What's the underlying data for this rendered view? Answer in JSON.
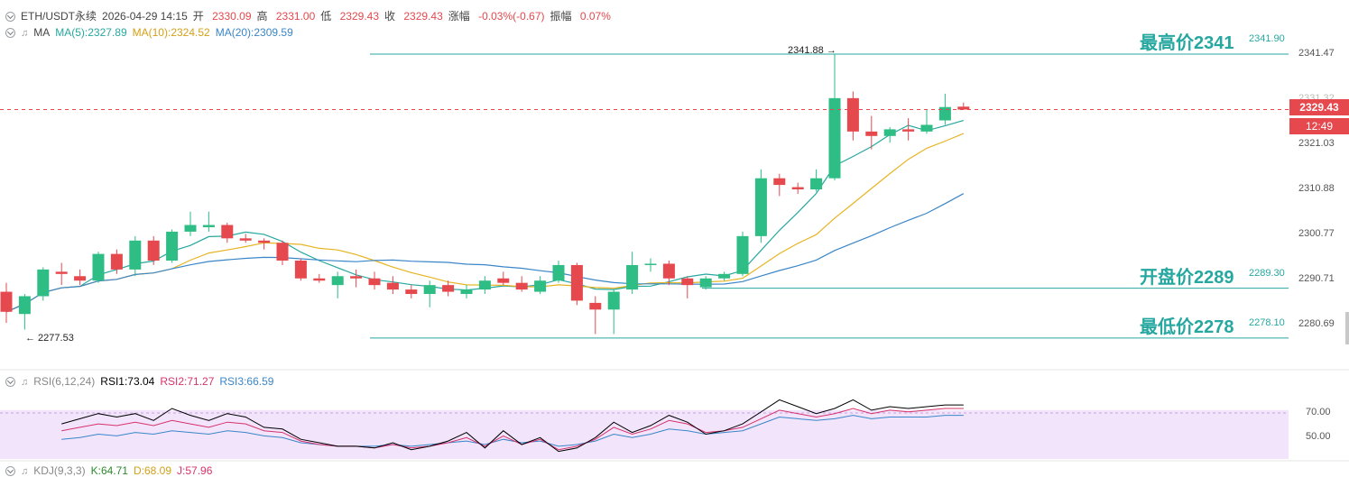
{
  "header": {
    "symbol": "ETH/USDT永续",
    "datetime": "2026-04-29 14:15",
    "open_label": "开",
    "open": "2330.09",
    "high_label": "高",
    "high": "2331.00",
    "low_label": "低",
    "low": "2329.43",
    "close_label": "收",
    "close": "2329.43",
    "change_label": "涨幅",
    "change": "-0.03%(-0.67)",
    "amp_label": "振幅",
    "amp": "0.07%"
  },
  "ma": {
    "label": "MA",
    "ma5": "MA(5):2327.89",
    "ma10": "MA(10):2324.52",
    "ma20": "MA(20):2309.59"
  },
  "rsi": {
    "label": "RSI(6,12,24)",
    "rsi1": "RSI1:73.04",
    "rsi2": "RSI2:71.27",
    "rsi3": "RSI3:66.59"
  },
  "kdj": {
    "label": "KDJ(9,3,3)",
    "k": "K:64.71",
    "d": "D:68.09",
    "j": "J:57.96"
  },
  "annotations": {
    "highest": "最高价2341",
    "highest_val": "2341.90",
    "open": "开盘价2289",
    "open_val": "2289.30",
    "lowest": "最低价2278",
    "lowest_val": "2278.10",
    "peak_label": "2341.88 →",
    "trough_label": "← 2277.53"
  },
  "price_tag": {
    "price": "2329.43",
    "countdown": "12:49"
  },
  "axis_labels": [
    "2341.47",
    "2331.32",
    "2321.03",
    "2310.88",
    "2300.77",
    "2290.71",
    "2280.69"
  ],
  "rsi_axis_labels": [
    "70.00",
    "50.00"
  ],
  "colors": {
    "up": "#2ebd85",
    "down": "#e5484d",
    "ma5": "#26a7a0",
    "ma10": "#e6b422",
    "ma20": "#3a86c8",
    "ref_line": "#26a7a0",
    "rsi1": "#000000",
    "rsi2": "#d6336c",
    "rsi3": "#3a86c8",
    "rsi_band": "#f1e4fb"
  },
  "chart_data": {
    "type": "candlestick",
    "price_range": [
      2272,
      2350
    ],
    "candles": [
      {
        "o": 2288.5,
        "h": 2290.5,
        "l": 2281.5,
        "c": 2284.0
      },
      {
        "o": 2283.5,
        "h": 2288.0,
        "l": 2280.0,
        "c": 2287.5
      },
      {
        "o": 2287.5,
        "h": 2294.0,
        "l": 2286.5,
        "c": 2293.5
      },
      {
        "o": 2293.0,
        "h": 2295.0,
        "l": 2290.0,
        "c": 2292.5
      },
      {
        "o": 2292.0,
        "h": 2293.5,
        "l": 2290.0,
        "c": 2291.0
      },
      {
        "o": 2291.0,
        "h": 2297.5,
        "l": 2290.5,
        "c": 2297.0
      },
      {
        "o": 2297.0,
        "h": 2298.0,
        "l": 2292.5,
        "c": 2293.5
      },
      {
        "o": 2293.5,
        "h": 2301.0,
        "l": 2292.0,
        "c": 2300.0
      },
      {
        "o": 2300.0,
        "h": 2301.0,
        "l": 2294.5,
        "c": 2295.5
      },
      {
        "o": 2295.5,
        "h": 2302.5,
        "l": 2295.0,
        "c": 2302.0
      },
      {
        "o": 2302.0,
        "h": 2306.5,
        "l": 2301.0,
        "c": 2303.5
      },
      {
        "o": 2303.0,
        "h": 2306.5,
        "l": 2302.0,
        "c": 2303.5
      },
      {
        "o": 2303.5,
        "h": 2304.0,
        "l": 2299.5,
        "c": 2300.5
      },
      {
        "o": 2300.5,
        "h": 2301.5,
        "l": 2299.5,
        "c": 2300.0
      },
      {
        "o": 2300.0,
        "h": 2300.5,
        "l": 2298.0,
        "c": 2299.5
      },
      {
        "o": 2299.5,
        "h": 2300.0,
        "l": 2294.5,
        "c": 2295.5
      },
      {
        "o": 2295.5,
        "h": 2296.0,
        "l": 2291.0,
        "c": 2291.5
      },
      {
        "o": 2291.5,
        "h": 2292.5,
        "l": 2290.5,
        "c": 2291.0
      },
      {
        "o": 2290.0,
        "h": 2293.0,
        "l": 2287.0,
        "c": 2292.0
      },
      {
        "o": 2292.0,
        "h": 2293.5,
        "l": 2289.5,
        "c": 2291.5
      },
      {
        "o": 2291.5,
        "h": 2293.0,
        "l": 2289.0,
        "c": 2290.0
      },
      {
        "o": 2290.5,
        "h": 2292.0,
        "l": 2288.0,
        "c": 2289.0
      },
      {
        "o": 2289.0,
        "h": 2290.0,
        "l": 2287.0,
        "c": 2288.0
      },
      {
        "o": 2288.0,
        "h": 2291.0,
        "l": 2285.0,
        "c": 2290.0
      },
      {
        "o": 2290.0,
        "h": 2291.0,
        "l": 2287.5,
        "c": 2288.5
      },
      {
        "o": 2288.0,
        "h": 2290.0,
        "l": 2287.0,
        "c": 2289.0
      },
      {
        "o": 2289.0,
        "h": 2292.0,
        "l": 2288.0,
        "c": 2291.0
      },
      {
        "o": 2291.5,
        "h": 2293.0,
        "l": 2290.0,
        "c": 2290.5
      },
      {
        "o": 2290.5,
        "h": 2292.0,
        "l": 2288.5,
        "c": 2289.0
      },
      {
        "o": 2288.5,
        "h": 2292.0,
        "l": 2288.0,
        "c": 2291.0
      },
      {
        "o": 2291.0,
        "h": 2295.5,
        "l": 2290.5,
        "c": 2294.5
      },
      {
        "o": 2294.5,
        "h": 2295.0,
        "l": 2285.5,
        "c": 2286.5
      },
      {
        "o": 2286.0,
        "h": 2287.5,
        "l": 2279.0,
        "c": 2284.5
      },
      {
        "o": 2284.5,
        "h": 2289.0,
        "l": 2279.0,
        "c": 2288.5
      },
      {
        "o": 2289.0,
        "h": 2297.5,
        "l": 2288.0,
        "c": 2294.5
      },
      {
        "o": 2294.5,
        "h": 2296.0,
        "l": 2293.0,
        "c": 2294.8
      },
      {
        "o": 2294.8,
        "h": 2295.5,
        "l": 2290.0,
        "c": 2291.5
      },
      {
        "o": 2291.5,
        "h": 2292.0,
        "l": 2287.0,
        "c": 2290.0
      },
      {
        "o": 2289.5,
        "h": 2292.0,
        "l": 2289.0,
        "c": 2291.5
      },
      {
        "o": 2291.5,
        "h": 2293.0,
        "l": 2291.0,
        "c": 2292.5
      },
      {
        "o": 2292.5,
        "h": 2302.0,
        "l": 2292.0,
        "c": 2301.0
      },
      {
        "o": 2301.0,
        "h": 2316.0,
        "l": 2299.5,
        "c": 2314.0
      },
      {
        "o": 2314.0,
        "h": 2315.0,
        "l": 2310.0,
        "c": 2312.5
      },
      {
        "o": 2312.0,
        "h": 2313.0,
        "l": 2310.5,
        "c": 2311.5
      },
      {
        "o": 2311.5,
        "h": 2316.0,
        "l": 2311.0,
        "c": 2314.0
      },
      {
        "o": 2314.0,
        "h": 2341.88,
        "l": 2313.5,
        "c": 2332.0
      },
      {
        "o": 2332.0,
        "h": 2333.5,
        "l": 2322.5,
        "c": 2324.5
      },
      {
        "o": 2324.5,
        "h": 2328.0,
        "l": 2320.5,
        "c": 2323.5
      },
      {
        "o": 2323.5,
        "h": 2325.5,
        "l": 2322.0,
        "c": 2325.0
      },
      {
        "o": 2325.0,
        "h": 2327.5,
        "l": 2322.5,
        "c": 2324.5
      },
      {
        "o": 2324.5,
        "h": 2329.5,
        "l": 2324.0,
        "c": 2326.0
      },
      {
        "o": 2327.0,
        "h": 2333.0,
        "l": 2326.0,
        "c": 2330.0
      },
      {
        "o": 2330.09,
        "h": 2331.0,
        "l": 2329.43,
        "c": 2329.43
      }
    ],
    "rsi_range": [
      40,
      82
    ],
    "rsi1": [
      62,
      65,
      68,
      66,
      68,
      64,
      71,
      67,
      64,
      68,
      66,
      60,
      59,
      53,
      51,
      49,
      49,
      48,
      51,
      47,
      49,
      52,
      57,
      48,
      58,
      50,
      54,
      46,
      48,
      54,
      63,
      57,
      61,
      67,
      63,
      56,
      58,
      62,
      69,
      76,
      72,
      68,
      71,
      76,
      70,
      72,
      71,
      72,
      73,
      73
    ],
    "rsi2": [
      58,
      60,
      62,
      61,
      63,
      61,
      64,
      62,
      60,
      63,
      62,
      58,
      57,
      52,
      50,
      49,
      49,
      48,
      50,
      48,
      49,
      51,
      54,
      49,
      55,
      50,
      53,
      47,
      49,
      53,
      60,
      56,
      59,
      64,
      62,
      57,
      58,
      60,
      65,
      70,
      68,
      66,
      68,
      71,
      68,
      70,
      69,
      70,
      71,
      71
    ],
    "rsi3": [
      53,
      54,
      56,
      55,
      57,
      56,
      58,
      57,
      56,
      58,
      57,
      55,
      54,
      51,
      50,
      49,
      49,
      49,
      50,
      49,
      50,
      51,
      52,
      50,
      53,
      51,
      52,
      49,
      50,
      52,
      56,
      54,
      56,
      59,
      58,
      56,
      57,
      58,
      62,
      66,
      65,
      64,
      65,
      67,
      65,
      66,
      66,
      66,
      67,
      67
    ]
  }
}
